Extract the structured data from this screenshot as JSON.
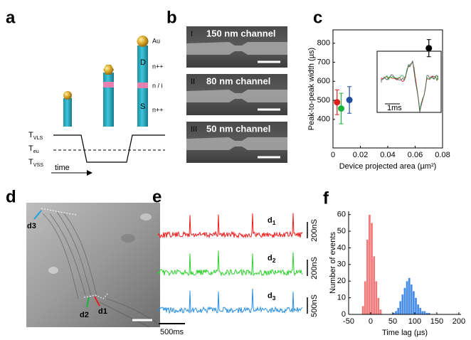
{
  "panel_labels": [
    "a",
    "b",
    "c",
    "d",
    "e",
    "f"
  ],
  "panel_a": {
    "wire_labels": [
      "Au",
      "D",
      "n++",
      "n / i",
      "S",
      "n++"
    ],
    "temps": [
      {
        "main": "T",
        "sub": "VLS"
      },
      {
        "main": "T",
        "sub": "eu"
      },
      {
        "main": "T",
        "sub": "VSS"
      }
    ],
    "time": "time"
  },
  "panel_b": {
    "images": [
      {
        "numeral": "I",
        "caption": "150 nm channel"
      },
      {
        "numeral": "II",
        "caption": "80 nm channel"
      },
      {
        "numeral": "III",
        "caption": "50 nm channel"
      }
    ]
  },
  "panel_d": {
    "labels": [
      {
        "text": "d3",
        "color": "#1aa3e0"
      },
      {
        "text": "d2",
        "color": "#19b33a"
      },
      {
        "text": "d1",
        "color": "#e0201c"
      }
    ]
  },
  "panel_e": {
    "traces": [
      {
        "name": "d",
        "sub": "1",
        "color": "#ee1c1c",
        "scale": "200nS"
      },
      {
        "name": "d",
        "sub": "2",
        "color": "#2fd12f",
        "scale": "200nS"
      },
      {
        "name": "d",
        "sub": "3",
        "color": "#2a8fe0",
        "scale": "500nS"
      }
    ],
    "time_scale": "500ms"
  },
  "chart_data": [
    {
      "type": "scatter",
      "x_label": "Device projected area (µm²)",
      "y_label": "Peak-to-peak width (µs)",
      "x": [
        0.003,
        0.006,
        0.012,
        0.07
      ],
      "values": [
        490,
        457,
        502,
        774
      ],
      "errors": [
        65,
        80,
        70,
        45
      ],
      "colors": [
        "#e0201c",
        "#19b33a",
        "#1f4e9c",
        "#000000"
      ],
      "xlim": [
        0,
        0.08
      ],
      "xticks": [
        0,
        0.02,
        0.04,
        0.06,
        0.08
      ],
      "ylim": [
        250,
        870
      ],
      "yticks": [
        400,
        500,
        600,
        700,
        800
      ],
      "inset_scale": "1ms"
    },
    {
      "type": "histogram",
      "x_label": "Time lag (µs)",
      "y_label": "Number of events",
      "series": [
        {
          "color": "#f07a7a",
          "bins": [
            -20,
            -15,
            -10,
            -5,
            0,
            5,
            10,
            15,
            20,
            25
          ],
          "values": [
            5,
            20,
            45,
            60,
            55,
            35,
            20,
            10,
            3
          ]
        },
        {
          "color": "#4a8ee8",
          "bins": [
            50,
            55,
            60,
            65,
            70,
            75,
            80,
            85,
            90,
            95,
            100,
            105,
            110,
            115,
            120,
            125,
            130,
            135
          ],
          "values": [
            1,
            2,
            4,
            8,
            12,
            16,
            20,
            22,
            18,
            14,
            10,
            6,
            4,
            2,
            2,
            1,
            1
          ]
        }
      ],
      "xlim": [
        -50,
        205
      ],
      "xticks": [
        -50,
        0,
        50,
        100,
        150,
        200
      ],
      "ylim": [
        0,
        62
      ],
      "yticks": [
        0,
        10,
        20,
        30,
        40,
        50,
        60
      ]
    }
  ]
}
